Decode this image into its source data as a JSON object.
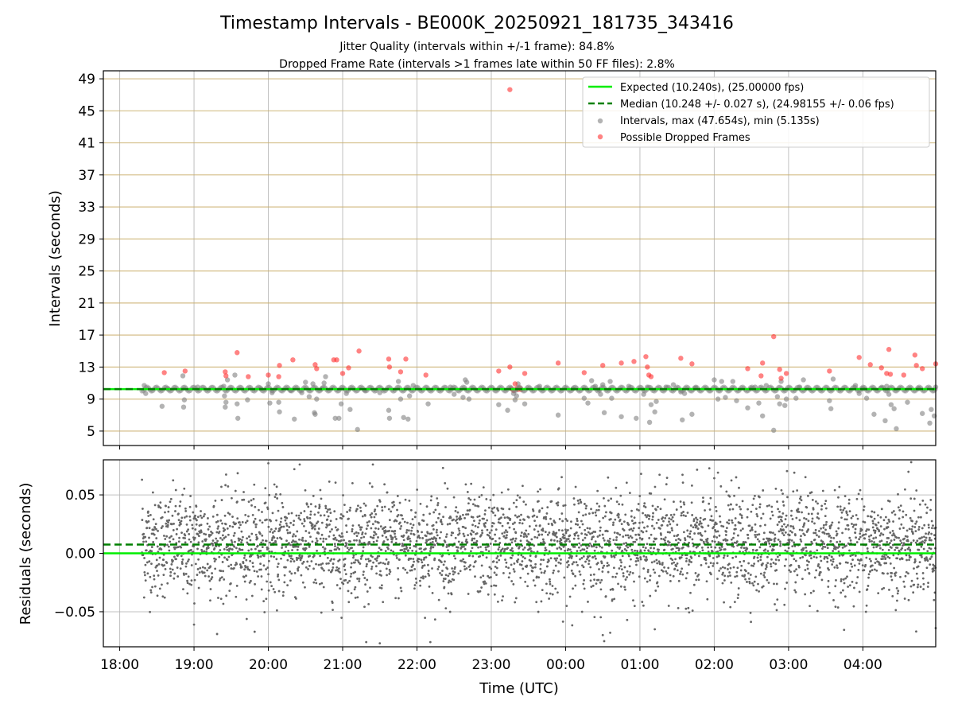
{
  "chart_data": [
    {
      "type": "scatter",
      "panel": "intervals",
      "title": "Timestamp Intervals - BE000K_20250921_181735_343416",
      "subtitle_lines": [
        "Jitter Quality (intervals within +/-1 frame): 84.8%",
        "Dropped Frame Rate (intervals >1 frames late within 50 FF files): 2.8%"
      ],
      "xlabel": "",
      "ylabel": "Intervals (seconds)",
      "ylim": [
        3.2,
        50.0
      ],
      "yticks": [
        5,
        9,
        13,
        17,
        21,
        25,
        29,
        33,
        37,
        41,
        45,
        49
      ],
      "ytick_labels": [
        "5",
        "9",
        "13",
        "17",
        "21",
        "25",
        "29",
        "33",
        "37",
        "41",
        "45",
        "49"
      ],
      "xlim_hours": [
        17.78,
        28.98
      ],
      "xticks_hours": [
        18,
        19,
        20,
        21,
        22,
        23,
        24,
        25,
        26,
        27,
        28
      ],
      "grid": "both",
      "legend_position": "top-right",
      "legend": [
        "Expected (10.240s), (25.00000 fps)",
        "Median (10.248 +/- 0.027 s), (24.98155 +/- 0.06 fps)",
        "Intervals, max (47.654s), min (5.135s)",
        "Possible Dropped Frames"
      ],
      "series": [
        {
          "name": "Expected",
          "kind": "hline",
          "value": 10.24,
          "color": "#00ee00",
          "style": "solid"
        },
        {
          "name": "Median",
          "kind": "hline",
          "value": 10.248,
          "color": "#008000",
          "style": "dashed"
        },
        {
          "name": "Intervals",
          "kind": "scatter",
          "color": "#808080",
          "points": [
            [
              18.33,
              10.7
            ],
            [
              18.35,
              9.7
            ],
            [
              18.57,
              8.1
            ],
            [
              18.65,
              10.3
            ],
            [
              18.85,
              11.9
            ],
            [
              18.86,
              8.0
            ],
            [
              18.87,
              8.9
            ],
            [
              19.05,
              10.5
            ],
            [
              19.4,
              10.6
            ],
            [
              19.41,
              9.4
            ],
            [
              19.42,
              8.0
            ],
            [
              19.43,
              8.6
            ],
            [
              19.45,
              11.4
            ],
            [
              19.55,
              12.0
            ],
            [
              19.58,
              8.4
            ],
            [
              19.59,
              6.6
            ],
            [
              19.72,
              8.9
            ],
            [
              19.9,
              10.3
            ],
            [
              20.0,
              10.9
            ],
            [
              20.02,
              8.5
            ],
            [
              20.05,
              9.8
            ],
            [
              20.14,
              8.6
            ],
            [
              20.15,
              7.4
            ],
            [
              20.3,
              10.1
            ],
            [
              20.35,
              6.5
            ],
            [
              20.45,
              9.8
            ],
            [
              20.5,
              11.1
            ],
            [
              20.55,
              9.3
            ],
            [
              20.6,
              10.9
            ],
            [
              20.62,
              7.3
            ],
            [
              20.63,
              7.1
            ],
            [
              20.65,
              9.0
            ],
            [
              20.72,
              10.3
            ],
            [
              20.75,
              11.0
            ],
            [
              20.77,
              11.8
            ],
            [
              20.9,
              6.6
            ],
            [
              20.95,
              6.6
            ],
            [
              20.98,
              8.4
            ],
            [
              21.05,
              9.7
            ],
            [
              21.1,
              7.7
            ],
            [
              21.2,
              5.2
            ],
            [
              21.3,
              10.1
            ],
            [
              21.5,
              9.8
            ],
            [
              21.62,
              7.6
            ],
            [
              21.63,
              6.6
            ],
            [
              21.75,
              11.2
            ],
            [
              21.78,
              9.0
            ],
            [
              21.82,
              6.7
            ],
            [
              21.88,
              6.5
            ],
            [
              21.9,
              9.4
            ],
            [
              21.95,
              10.7
            ],
            [
              22.15,
              8.4
            ],
            [
              22.45,
              10.5
            ],
            [
              22.5,
              9.6
            ],
            [
              22.62,
              9.2
            ],
            [
              22.65,
              11.4
            ],
            [
              22.67,
              11.1
            ],
            [
              22.7,
              9.0
            ],
            [
              23.1,
              8.3
            ],
            [
              23.22,
              7.6
            ],
            [
              23.3,
              9.7
            ],
            [
              23.32,
              8.9
            ],
            [
              23.34,
              9.4
            ],
            [
              23.36,
              10.9
            ],
            [
              23.45,
              8.4
            ],
            [
              23.65,
              10.6
            ],
            [
              23.9,
              7.0
            ],
            [
              24.1,
              10.3
            ],
            [
              24.25,
              9.1
            ],
            [
              24.3,
              8.5
            ],
            [
              24.35,
              11.3
            ],
            [
              24.4,
              10.6
            ],
            [
              24.45,
              10.2
            ],
            [
              24.47,
              9.6
            ],
            [
              24.5,
              10.8
            ],
            [
              24.52,
              7.3
            ],
            [
              24.6,
              11.2
            ],
            [
              24.62,
              9.1
            ],
            [
              24.75,
              6.8
            ],
            [
              24.85,
              10.6
            ],
            [
              24.95,
              6.6
            ],
            [
              25.05,
              9.6
            ],
            [
              25.1,
              10.5
            ],
            [
              25.13,
              6.1
            ],
            [
              25.15,
              8.3
            ],
            [
              25.2,
              7.4
            ],
            [
              25.22,
              8.7
            ],
            [
              25.35,
              10.5
            ],
            [
              25.45,
              10.8
            ],
            [
              25.55,
              9.9
            ],
            [
              25.57,
              6.4
            ],
            [
              25.6,
              9.7
            ],
            [
              25.7,
              7.1
            ],
            [
              25.75,
              10.4
            ],
            [
              26.0,
              11.4
            ],
            [
              26.05,
              9.0
            ],
            [
              26.1,
              11.2
            ],
            [
              26.15,
              9.2
            ],
            [
              26.25,
              11.2
            ],
            [
              26.3,
              8.8
            ],
            [
              26.45,
              7.9
            ],
            [
              26.5,
              10.3
            ],
            [
              26.55,
              10.5
            ],
            [
              26.6,
              8.5
            ],
            [
              26.65,
              6.9
            ],
            [
              26.7,
              10.7
            ],
            [
              26.8,
              5.1
            ],
            [
              26.85,
              9.3
            ],
            [
              26.88,
              8.4
            ],
            [
              26.9,
              11.2
            ],
            [
              26.95,
              8.2
            ],
            [
              26.97,
              9.0
            ],
            [
              27.1,
              9.1
            ],
            [
              27.15,
              10.5
            ],
            [
              27.2,
              11.4
            ],
            [
              27.55,
              8.8
            ],
            [
              27.57,
              7.8
            ],
            [
              27.6,
              11.5
            ],
            [
              27.9,
              10.7
            ],
            [
              27.95,
              9.7
            ],
            [
              28.0,
              10.3
            ],
            [
              28.05,
              9.1
            ],
            [
              28.15,
              7.1
            ],
            [
              28.25,
              10.4
            ],
            [
              28.3,
              6.3
            ],
            [
              28.32,
              10.6
            ],
            [
              28.35,
              9.6
            ],
            [
              28.38,
              8.3
            ],
            [
              28.42,
              7.8
            ],
            [
              28.45,
              5.3
            ],
            [
              28.6,
              8.6
            ],
            [
              28.75,
              10.3
            ],
            [
              28.8,
              7.2
            ],
            [
              28.9,
              6.0
            ],
            [
              28.92,
              7.7
            ],
            [
              28.96,
              6.9
            ],
            [
              28.98,
              10.5
            ]
          ]
        },
        {
          "name": "Possible Dropped Frames",
          "kind": "scatter",
          "color": "#ff3030",
          "points": [
            [
              18.6,
              12.3
            ],
            [
              18.88,
              12.5
            ],
            [
              19.42,
              12.4
            ],
            [
              19.43,
              11.9
            ],
            [
              19.58,
              14.8
            ],
            [
              19.73,
              11.8
            ],
            [
              20.0,
              12.0
            ],
            [
              20.14,
              11.8
            ],
            [
              20.15,
              13.2
            ],
            [
              20.33,
              13.9
            ],
            [
              20.63,
              13.3
            ],
            [
              20.65,
              12.8
            ],
            [
              20.88,
              13.9
            ],
            [
              20.92,
              13.9
            ],
            [
              21.0,
              12.2
            ],
            [
              21.08,
              12.9
            ],
            [
              21.22,
              15.0
            ],
            [
              21.62,
              14.0
            ],
            [
              21.63,
              13.0
            ],
            [
              21.78,
              12.4
            ],
            [
              21.85,
              14.0
            ],
            [
              22.12,
              12.0
            ],
            [
              23.1,
              12.5
            ],
            [
              23.25,
              13.0
            ],
            [
              23.27,
              10.3
            ],
            [
              23.3,
              10.1
            ],
            [
              23.32,
              10.9
            ],
            [
              23.34,
              10.3
            ],
            [
              23.36,
              10.2
            ],
            [
              23.38,
              10.4
            ],
            [
              23.4,
              10.2
            ],
            [
              23.45,
              12.2
            ],
            [
              23.25,
              47.65
            ],
            [
              23.9,
              13.5
            ],
            [
              24.25,
              12.3
            ],
            [
              24.5,
              13.2
            ],
            [
              24.75,
              13.5
            ],
            [
              24.92,
              13.7
            ],
            [
              25.08,
              14.3
            ],
            [
              25.1,
              13.0
            ],
            [
              25.12,
              12.0
            ],
            [
              25.15,
              11.8
            ],
            [
              25.55,
              14.1
            ],
            [
              25.7,
              13.4
            ],
            [
              26.45,
              12.8
            ],
            [
              26.63,
              11.9
            ],
            [
              26.65,
              13.5
            ],
            [
              26.8,
              16.8
            ],
            [
              26.88,
              12.7
            ],
            [
              26.9,
              11.6
            ],
            [
              26.97,
              12.2
            ],
            [
              27.55,
              12.5
            ],
            [
              27.95,
              14.2
            ],
            [
              28.1,
              13.3
            ],
            [
              28.25,
              12.9
            ],
            [
              28.32,
              12.2
            ],
            [
              28.35,
              15.2
            ],
            [
              28.37,
              12.1
            ],
            [
              28.55,
              12.0
            ],
            [
              28.7,
              14.5
            ],
            [
              28.72,
              13.2
            ],
            [
              28.8,
              12.8
            ],
            [
              28.98,
              13.4
            ]
          ]
        }
      ]
    },
    {
      "type": "scatter",
      "panel": "residuals",
      "xlabel": "Time (UTC)",
      "ylabel": "Residuals (seconds)",
      "ylim": [
        -0.08,
        0.08
      ],
      "yticks": [
        -0.05,
        0.0,
        0.05
      ],
      "ytick_labels": [
        "−0.05",
        "0.00",
        "0.05"
      ],
      "xlim_hours": [
        17.78,
        28.98
      ],
      "xticks_hours": [
        18,
        19,
        20,
        21,
        22,
        23,
        24,
        25,
        26,
        27,
        28
      ],
      "xtick_labels": [
        "18:00",
        "19:00",
        "20:00",
        "21:00",
        "22:00",
        "23:00",
        "00:00",
        "01:00",
        "02:00",
        "03:00",
        "04:00"
      ],
      "grid": "both",
      "x_start_hours": 18.3,
      "x_end_hours": 28.98,
      "point_count": 3700,
      "noise_sd": 0.022,
      "series": [
        {
          "name": "Expected",
          "kind": "hline",
          "value": 0.0,
          "color": "#00ee00",
          "style": "solid"
        },
        {
          "name": "Median",
          "kind": "hline",
          "value": 0.0075,
          "color": "#008000",
          "style": "dashed"
        },
        {
          "name": "Residuals",
          "kind": "scatter",
          "color": "#666666",
          "outliers": [
            [
              18.3,
              0.063
            ],
            [
              19.0,
              -0.061
            ],
            [
              20.0,
              0.077
            ],
            [
              20.35,
              0.072
            ],
            [
              21.5,
              -0.077
            ],
            [
              22.18,
              -0.076
            ],
            [
              22.35,
              0.073
            ],
            [
              24.5,
              -0.07
            ],
            [
              24.6,
              -0.068
            ],
            [
              25.2,
              -0.065
            ],
            [
              26.05,
              0.069
            ],
            [
              28.65,
              0.078
            ],
            [
              28.98,
              -0.064
            ]
          ]
        }
      ]
    }
  ]
}
